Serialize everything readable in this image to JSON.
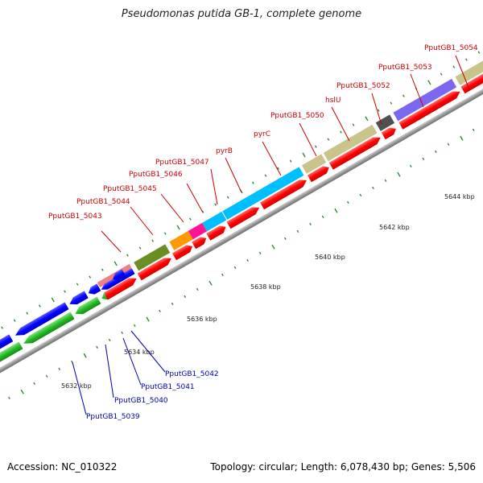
{
  "title": "Pseudomonas putida GB-1, complete genome",
  "footer": {
    "accession": "Accession: NC_010322",
    "summary": "Topology: circular; Length: 6,078,430 bp; Genes: 5,506"
  },
  "colors": {
    "backbone": "#8c8c8c",
    "cds_forward": "#ff0000",
    "cds_reverse": "#0000ff",
    "cds_green": "#22bb22",
    "label_forward": "#cc0000",
    "label_reverse": "#0000aa",
    "tick": "#2a8a2a",
    "olive": "#6b8e23",
    "orange": "#ff9900",
    "pink": "#ff1493",
    "cyan": "#00bfff",
    "khaki": "#c8c48a",
    "gray": "#505050",
    "purple": "#7b68ee",
    "salmon": "#f08080"
  },
  "scale_labels": [
    "5632 kbp",
    "5634 kbp",
    "5636 kbp",
    "5638 kbp",
    "5640 kbp",
    "5642 kbp",
    "5644 kbp"
  ],
  "gene_labels_forward": [
    "PputGB1_5043",
    "PputGB1_5044",
    "PputGB1_5045",
    "PputGB1_5046",
    "PputGB1_5047",
    "pyrB",
    "pyrC",
    "PputGB1_5050",
    "hslU",
    "PputGB1_5052",
    "PputGB1_5053",
    "PputGB1_5054"
  ],
  "gene_labels_reverse": [
    "PputGB1_5039",
    "PputGB1_5040",
    "PputGB1_5041",
    "PputGB1_5042"
  ]
}
